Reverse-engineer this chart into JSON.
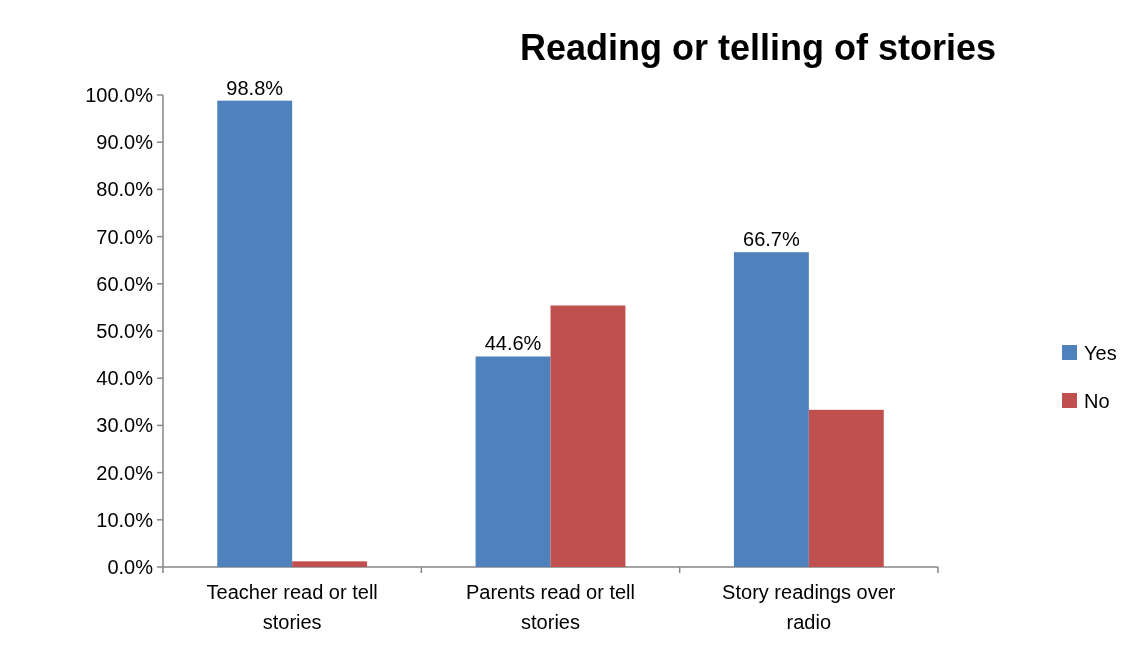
{
  "chart_data": {
    "type": "bar",
    "title": "Reading or telling of stories",
    "categories": [
      "Teacher read or tell stories",
      "Parents read or tell stories",
      "Story readings over radio"
    ],
    "series": [
      {
        "name": "Yes",
        "color": "#4f81bd",
        "values": [
          98.8,
          44.6,
          66.7
        ],
        "value_labels": [
          "98.8%",
          "44.6%",
          "66.7%"
        ]
      },
      {
        "name": "No",
        "color": "#c0504d",
        "values": [
          1.2,
          55.4,
          33.3
        ]
      }
    ],
    "ylim": [
      0,
      100
    ],
    "yticks": [
      {
        "value": 0,
        "label": "0.0%"
      },
      {
        "value": 10,
        "label": "10.0%"
      },
      {
        "value": 20,
        "label": "20.0%"
      },
      {
        "value": 30,
        "label": "30.0%"
      },
      {
        "value": 40,
        "label": "40.0%"
      },
      {
        "value": 50,
        "label": "50.0%"
      },
      {
        "value": 60,
        "label": "60.0%"
      },
      {
        "value": 70,
        "label": "70.0%"
      },
      {
        "value": 80,
        "label": "80.0%"
      },
      {
        "value": 90,
        "label": "90.0%"
      },
      {
        "value": 100,
        "label": "100.0%"
      }
    ],
    "grid": false,
    "legend": "right"
  }
}
